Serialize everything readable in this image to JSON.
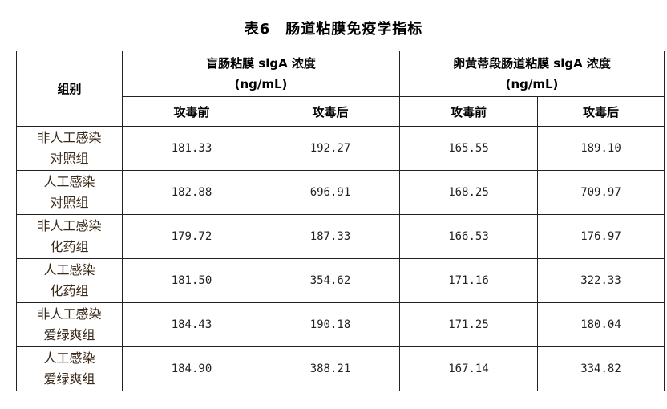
{
  "title": "表6　肠道粘膜免疫学指标",
  "header": {
    "group_label": "组别",
    "col_group_1": {
      "name": "盲肠粘膜 slgA 浓度",
      "unit": "(ng/mL)"
    },
    "col_group_2": {
      "name": "卵黄蒂段肠道粘膜 slgA 浓度",
      "unit": "(ng/mL)"
    },
    "sub_cols": [
      "攻毒前",
      "攻毒后",
      "攻毒前",
      "攻毒后"
    ]
  },
  "rows": [
    {
      "group_line1": "非人工感染",
      "group_line2": "对照组",
      "values": [
        "181.33",
        "192.27",
        "165.55",
        "189.10"
      ]
    },
    {
      "group_line1": "人工感染",
      "group_line2": "对照组",
      "values": [
        "182.88",
        "696.91",
        "168.25",
        "709.97"
      ]
    },
    {
      "group_line1": "非人工感染",
      "group_line2": "化药组",
      "values": [
        "179.72",
        "187.33",
        "166.53",
        "176.97"
      ]
    },
    {
      "group_line1": "人工感染",
      "group_line2": "化药组",
      "values": [
        "181.50",
        "354.62",
        "171.16",
        "322.33"
      ]
    },
    {
      "group_line1": "非人工感染",
      "group_line2": "爱绿爽组",
      "values": [
        "184.43",
        "190.18",
        "171.25",
        "180.04"
      ]
    },
    {
      "group_line1": "人工感染",
      "group_line2": "爱绿爽组",
      "values": [
        "184.90",
        "388.21",
        "167.14",
        "334.82"
      ]
    }
  ]
}
